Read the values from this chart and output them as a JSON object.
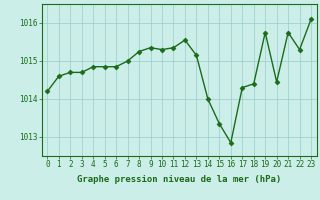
{
  "x": [
    0,
    1,
    2,
    3,
    4,
    5,
    6,
    7,
    8,
    9,
    10,
    11,
    12,
    13,
    14,
    15,
    16,
    17,
    18,
    19,
    20,
    21,
    22,
    23
  ],
  "y": [
    1014.2,
    1014.6,
    1014.7,
    1014.7,
    1014.85,
    1014.85,
    1014.85,
    1015.0,
    1015.25,
    1015.35,
    1015.3,
    1015.35,
    1015.55,
    1015.15,
    1014.0,
    1013.35,
    1012.85,
    1014.3,
    1014.4,
    1015.75,
    1014.45,
    1015.75,
    1015.3,
    1016.1
  ],
  "line_color": "#1a6b1a",
  "marker": "D",
  "marker_size": 2.5,
  "bg_color": "#cceee8",
  "grid_color": "#99cccc",
  "xlabel": "Graphe pression niveau de la mer (hPa)",
  "xlabel_fontsize": 6.5,
  "tick_fontsize": 5.5,
  "ylim": [
    1012.5,
    1016.5
  ],
  "yticks": [
    1013,
    1014,
    1015,
    1016
  ],
  "xticks": [
    0,
    1,
    2,
    3,
    4,
    5,
    6,
    7,
    8,
    9,
    10,
    11,
    12,
    13,
    14,
    15,
    16,
    17,
    18,
    19,
    20,
    21,
    22,
    23
  ],
  "axis_color": "#1a6b1a",
  "border_color": "#1a6b1a",
  "linewidth": 1.0
}
